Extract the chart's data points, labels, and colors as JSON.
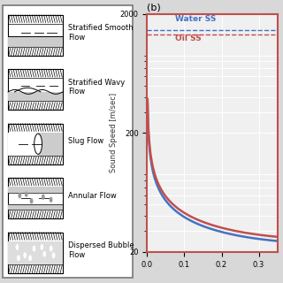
{
  "title_b": "(b)",
  "ylabel": "Sound Speed [m/sec]",
  "xlim": [
    0,
    0.35
  ],
  "ylim_log": [
    20,
    2000
  ],
  "xticks": [
    0,
    0.1,
    0.2,
    0.3
  ],
  "yticks": [
    20,
    200,
    2000
  ],
  "water_ss_color": "#4472C4",
  "oil_ss_color": "#C0504D",
  "water_hline": 1480,
  "oil_hline": 1350,
  "water_label": "Water SS",
  "oil_label": "Oil SS",
  "bg_color": "#F0F0F0",
  "spine_color": "#C0504D",
  "grid_color": "#FFFFFF",
  "flow_regimes": [
    "Stratified Smooth\nFlow",
    "Stratified Wavy\nFlow",
    "Slug Flow",
    "Annular Flow",
    "Dispersed Bubble\nFlow"
  ],
  "panel_bg": "#FFFFFF",
  "border_color": "#888888"
}
